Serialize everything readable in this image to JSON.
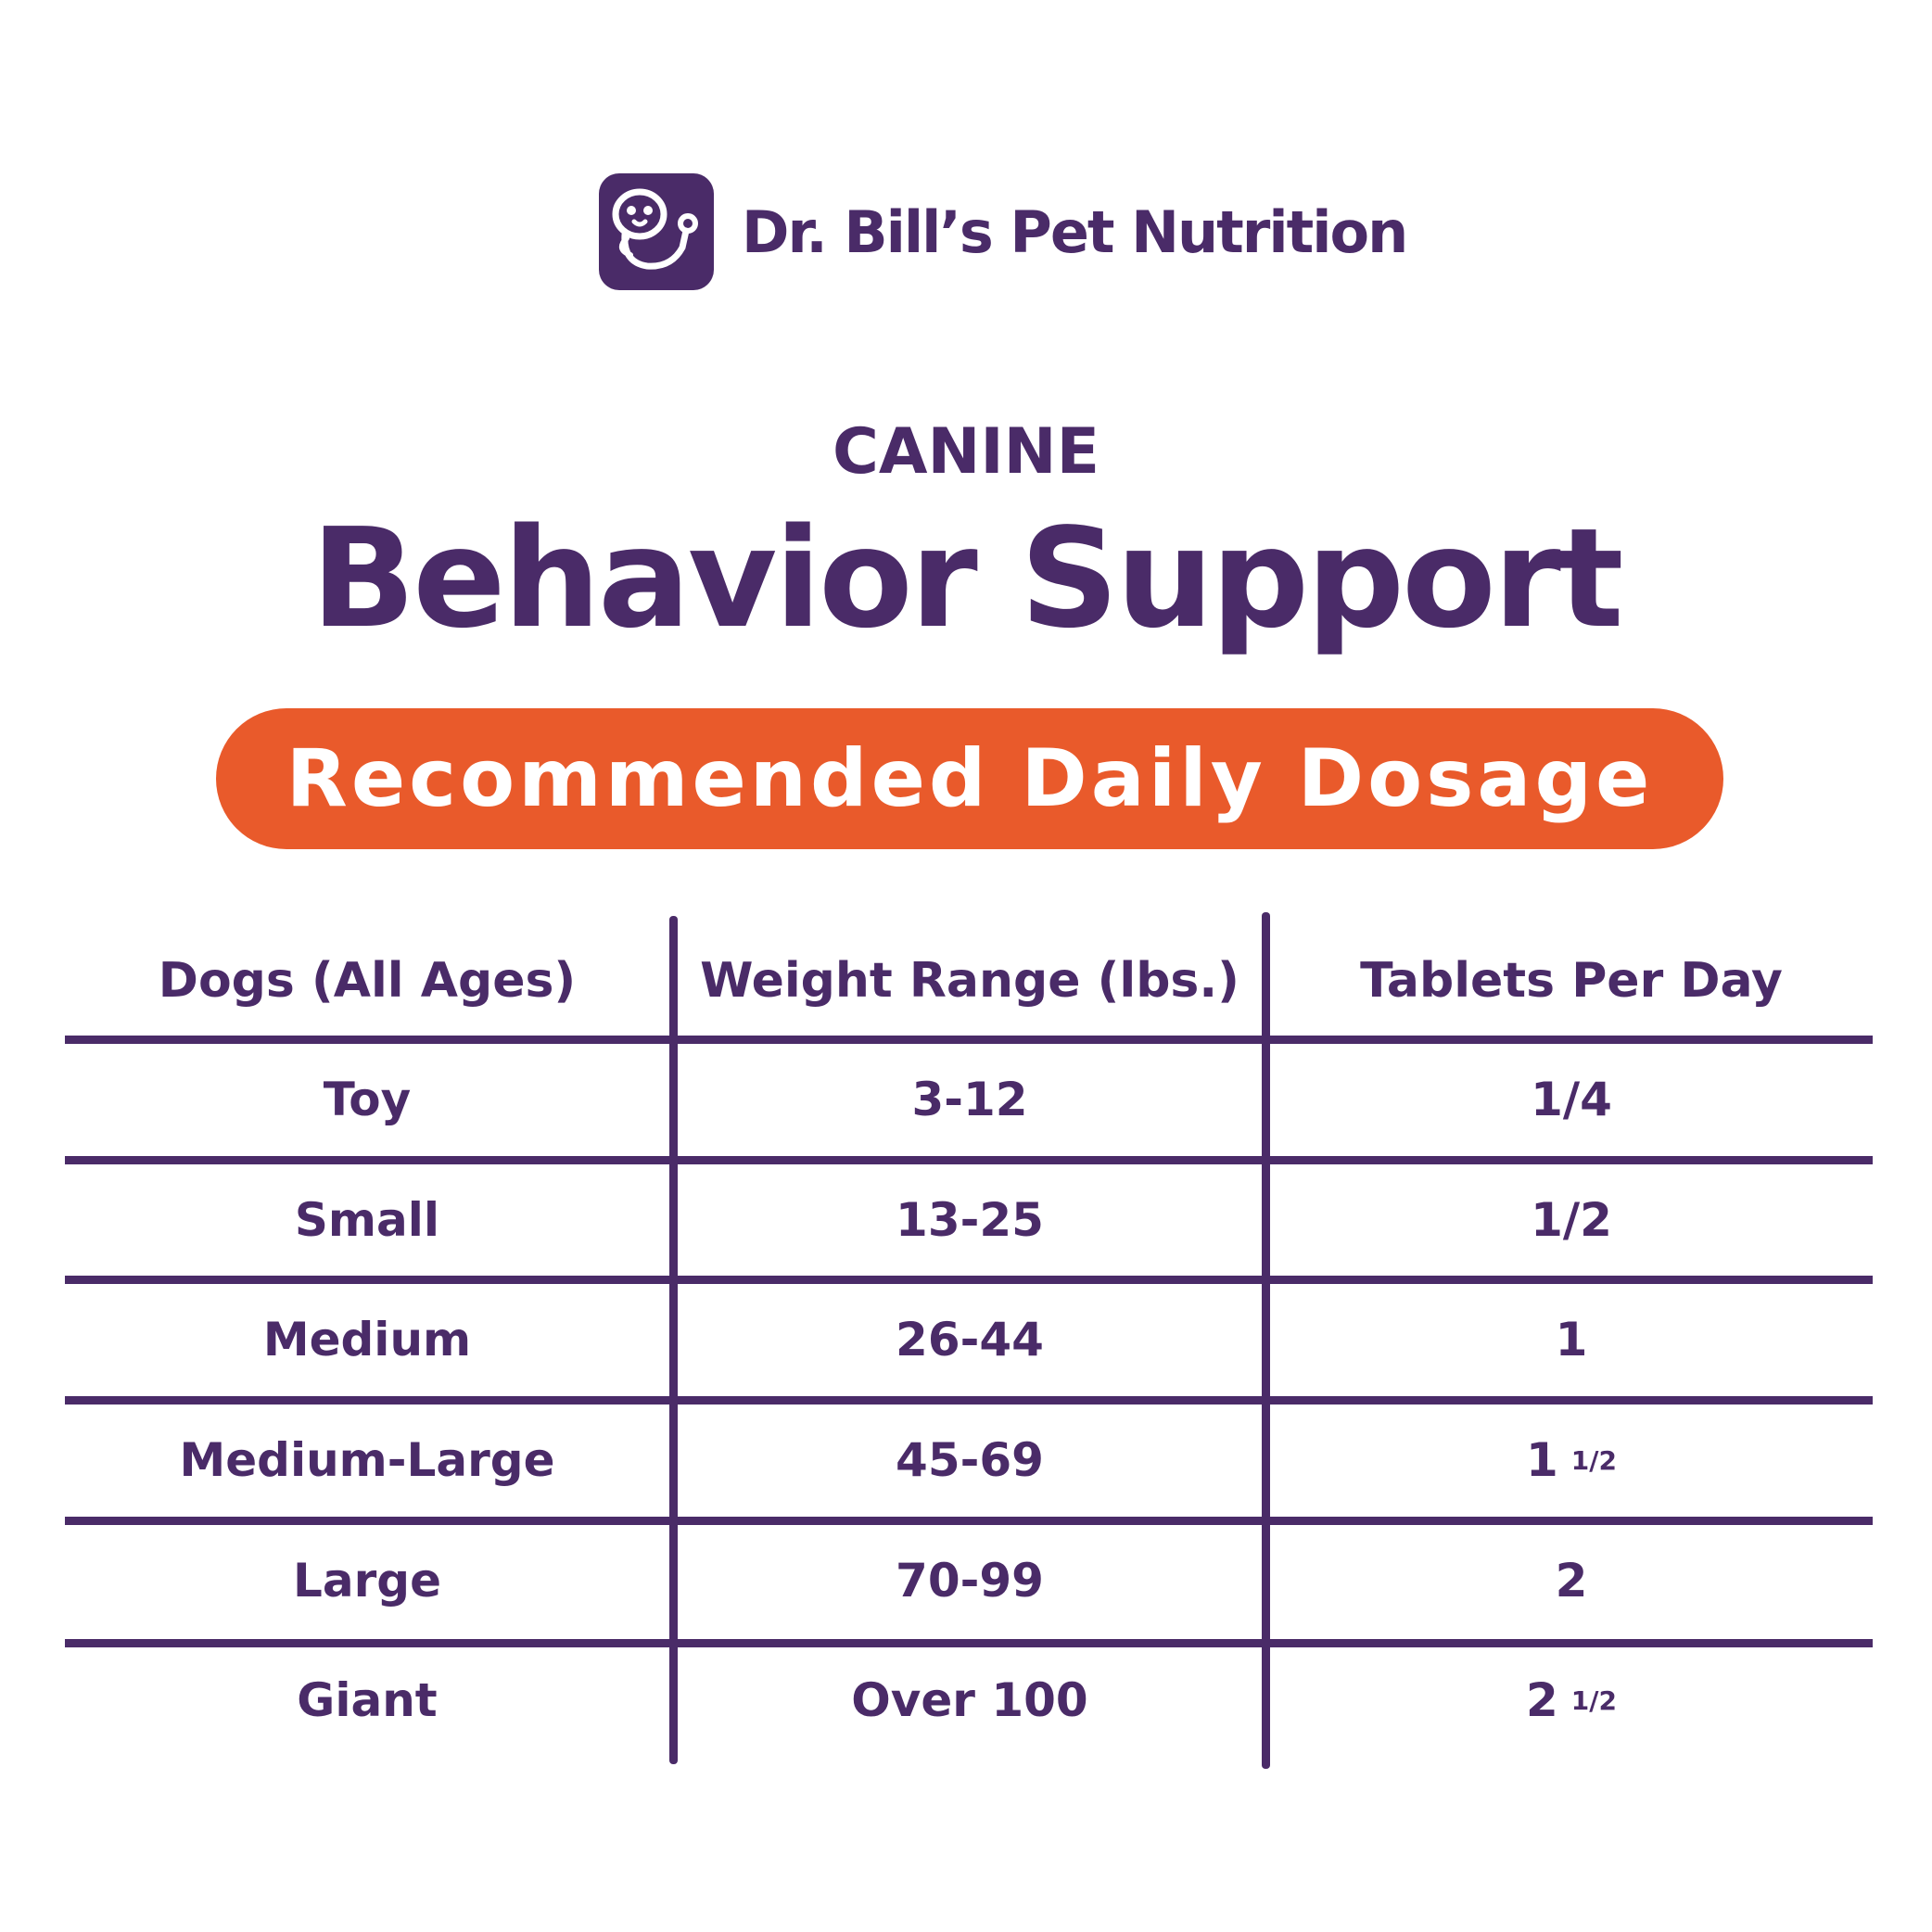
{
  "brand": {
    "name": "Dr. Bill’s Pet Nutrition",
    "logo": "dog-stethoscope-icon"
  },
  "eyebrow": "CANINE",
  "title": "Behavior Support",
  "banner": "Recommended Daily Dosage",
  "colors": {
    "primary": "#4a2b68",
    "accent": "#e95a2b",
    "background": "#ffffff"
  },
  "table": {
    "headers": [
      "Dogs (All Ages)",
      "Weight Range (lbs.)",
      "Tablets Per Day"
    ],
    "rows": [
      {
        "dog": "Toy",
        "weight": "3-12",
        "tablets": "1/4",
        "tablets_frac": ""
      },
      {
        "dog": "Small",
        "weight": "13-25",
        "tablets": "1/2",
        "tablets_frac": ""
      },
      {
        "dog": "Medium",
        "weight": "26-44",
        "tablets": "1",
        "tablets_frac": ""
      },
      {
        "dog": "Medium-Large",
        "weight": "45-69",
        "tablets": "1",
        "tablets_frac": "1/2"
      },
      {
        "dog": "Large",
        "weight": "70-99",
        "tablets": "2",
        "tablets_frac": ""
      },
      {
        "dog": "Giant",
        "weight": "Over 100",
        "tablets": "2",
        "tablets_frac": "1/2"
      }
    ]
  }
}
